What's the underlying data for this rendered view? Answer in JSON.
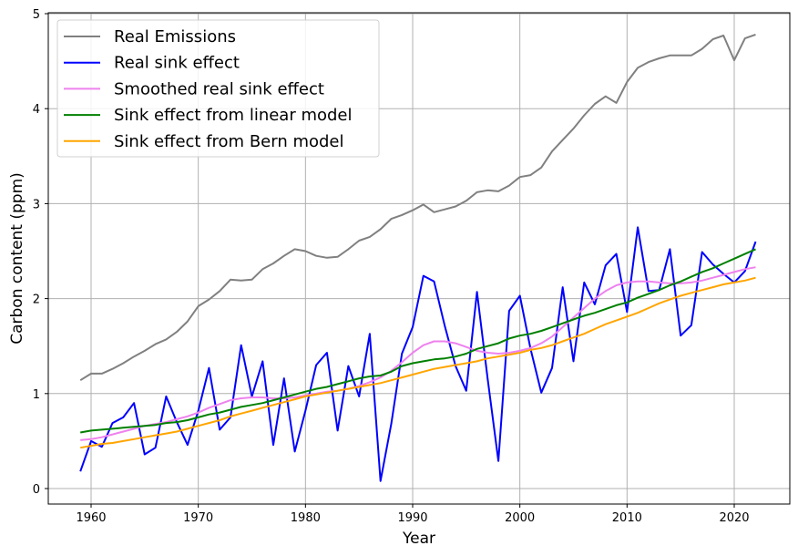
{
  "chart_data": {
    "type": "line",
    "title": "",
    "xlabel": "Year",
    "ylabel": "Carbon content (ppm)",
    "xlim": [
      1956,
      2025
    ],
    "ylim": [
      -0.15,
      5.0
    ],
    "xticks": [
      1960,
      1970,
      1980,
      1990,
      2000,
      2010,
      2020
    ],
    "yticks": [
      0,
      1,
      2,
      3,
      4,
      5
    ],
    "grid": true,
    "legend_position": "top-left",
    "x": [
      1959,
      1960,
      1961,
      1962,
      1963,
      1964,
      1965,
      1966,
      1967,
      1968,
      1969,
      1970,
      1971,
      1972,
      1973,
      1974,
      1975,
      1976,
      1977,
      1978,
      1979,
      1980,
      1981,
      1982,
      1983,
      1984,
      1985,
      1986,
      1987,
      1988,
      1989,
      1990,
      1991,
      1992,
      1993,
      1994,
      1995,
      1996,
      1997,
      1998,
      1999,
      2000,
      2001,
      2002,
      2003,
      2004,
      2005,
      2006,
      2007,
      2008,
      2009,
      2010,
      2011,
      2012,
      2013,
      2014,
      2015,
      2016,
      2017,
      2018,
      2019,
      2020,
      2021,
      2022
    ],
    "series": [
      {
        "name": "Real Emissions",
        "color": "#808080",
        "values": [
          1.14,
          1.21,
          1.21,
          1.26,
          1.32,
          1.39,
          1.45,
          1.52,
          1.57,
          1.65,
          1.76,
          1.92,
          1.99,
          2.08,
          2.2,
          2.19,
          2.2,
          2.31,
          2.37,
          2.45,
          2.52,
          2.5,
          2.45,
          2.43,
          2.44,
          2.52,
          2.61,
          2.65,
          2.73,
          2.84,
          2.88,
          2.93,
          2.99,
          2.91,
          2.94,
          2.97,
          3.03,
          3.12,
          3.14,
          3.13,
          3.19,
          3.28,
          3.3,
          3.38,
          3.55,
          3.67,
          3.79,
          3.93,
          4.05,
          4.13,
          4.06,
          4.28,
          4.43,
          4.49,
          4.53,
          4.56,
          4.56,
          4.56,
          4.63,
          4.73,
          4.77,
          4.51,
          4.74,
          4.78
        ]
      },
      {
        "name": "Real sink effect",
        "color": "#0000ff",
        "values": [
          0.18,
          0.5,
          0.44,
          0.69,
          0.75,
          0.9,
          0.36,
          0.43,
          0.97,
          0.7,
          0.46,
          0.82,
          1.27,
          0.62,
          0.75,
          1.51,
          0.97,
          1.34,
          0.46,
          1.16,
          0.39,
          0.82,
          1.3,
          1.43,
          0.61,
          1.29,
          0.97,
          1.63,
          0.08,
          0.68,
          1.42,
          1.7,
          2.24,
          2.18,
          1.71,
          1.29,
          1.03,
          2.07,
          1.15,
          0.29,
          1.87,
          2.03,
          1.47,
          1.01,
          1.27,
          2.12,
          1.34,
          2.17,
          1.94,
          2.35,
          2.47,
          1.86,
          2.75,
          2.08,
          2.09,
          2.52,
          1.61,
          1.72,
          2.49,
          2.36,
          2.26,
          2.17,
          2.29,
          2.6
        ]
      },
      {
        "name": "Smoothed real sink effect",
        "color": "#ee82ee",
        "values": [
          0.51,
          0.52,
          0.54,
          0.57,
          0.6,
          0.63,
          0.66,
          0.68,
          0.7,
          0.73,
          0.76,
          0.8,
          0.85,
          0.89,
          0.93,
          0.95,
          0.96,
          0.96,
          0.95,
          0.95,
          0.96,
          0.98,
          1.0,
          1.02,
          1.03,
          1.05,
          1.08,
          1.12,
          1.17,
          1.24,
          1.33,
          1.43,
          1.51,
          1.55,
          1.55,
          1.53,
          1.49,
          1.45,
          1.43,
          1.42,
          1.43,
          1.45,
          1.48,
          1.53,
          1.6,
          1.7,
          1.8,
          1.9,
          2.0,
          2.08,
          2.14,
          2.17,
          2.18,
          2.18,
          2.17,
          2.16,
          2.16,
          2.17,
          2.19,
          2.22,
          2.25,
          2.28,
          2.31,
          2.33
        ]
      },
      {
        "name": "Sink effect from linear model",
        "color": "#008000",
        "values": [
          0.59,
          0.61,
          0.62,
          0.63,
          0.64,
          0.65,
          0.66,
          0.67,
          0.69,
          0.7,
          0.72,
          0.75,
          0.78,
          0.8,
          0.83,
          0.86,
          0.88,
          0.9,
          0.93,
          0.96,
          0.99,
          1.02,
          1.05,
          1.07,
          1.1,
          1.13,
          1.16,
          1.18,
          1.19,
          1.23,
          1.29,
          1.32,
          1.34,
          1.36,
          1.37,
          1.39,
          1.42,
          1.47,
          1.5,
          1.53,
          1.58,
          1.61,
          1.63,
          1.66,
          1.7,
          1.74,
          1.78,
          1.82,
          1.85,
          1.89,
          1.93,
          1.96,
          2.01,
          2.05,
          2.09,
          2.14,
          2.18,
          2.23,
          2.28,
          2.32,
          2.37,
          2.42,
          2.47,
          2.52
        ]
      },
      {
        "name": "Sink effect from Bern model",
        "color": "#ffa500",
        "values": [
          0.43,
          0.45,
          0.47,
          0.48,
          0.5,
          0.52,
          0.54,
          0.56,
          0.58,
          0.6,
          0.63,
          0.66,
          0.69,
          0.72,
          0.76,
          0.79,
          0.82,
          0.85,
          0.88,
          0.91,
          0.94,
          0.97,
          0.99,
          1.01,
          1.03,
          1.05,
          1.07,
          1.09,
          1.11,
          1.14,
          1.17,
          1.2,
          1.23,
          1.26,
          1.28,
          1.3,
          1.32,
          1.34,
          1.37,
          1.39,
          1.41,
          1.43,
          1.46,
          1.48,
          1.51,
          1.55,
          1.59,
          1.63,
          1.68,
          1.73,
          1.77,
          1.81,
          1.85,
          1.9,
          1.95,
          1.99,
          2.03,
          2.06,
          2.09,
          2.12,
          2.15,
          2.17,
          2.19,
          2.22
        ]
      }
    ]
  }
}
